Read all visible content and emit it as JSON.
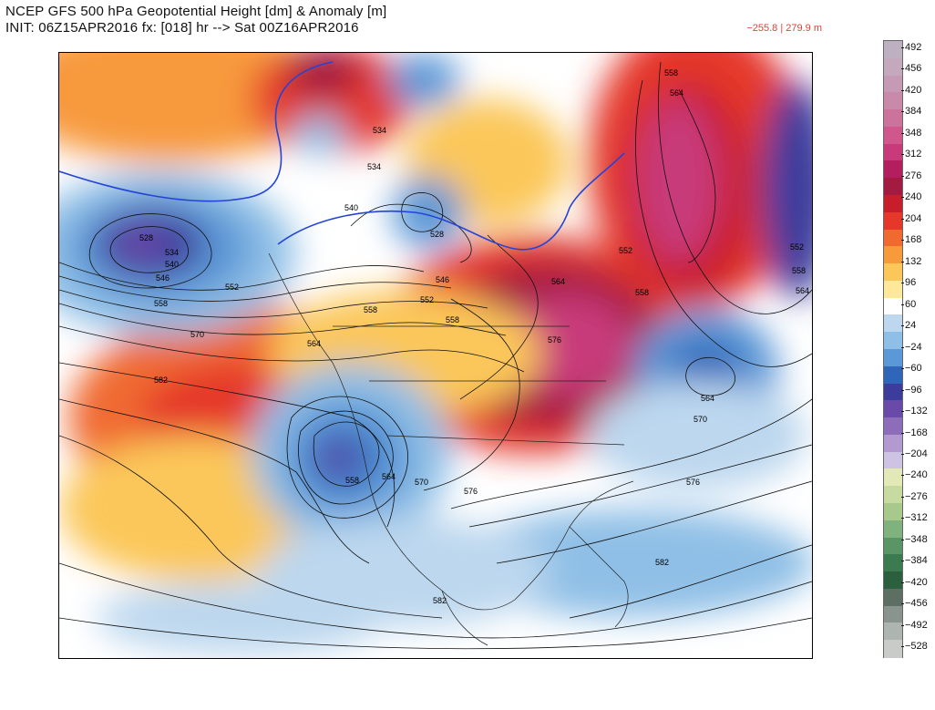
{
  "header": {
    "title_line1": "NCEP GFS 500 hPa Geopotential Height [dm] & Anomaly [m]",
    "title_line2": "INIT: 06Z15APR2016 fx: [018] hr --> Sat 00Z16APR2016",
    "min_max": "−255.8 | 279.9 m"
  },
  "colorbar": {
    "labels": [
      "492",
      "456",
      "420",
      "384",
      "348",
      "312",
      "276",
      "240",
      "204",
      "168",
      "132",
      "96",
      "60",
      "24",
      "−24",
      "−60",
      "−96",
      "−132",
      "−168",
      "−204",
      "−240",
      "−276",
      "−312",
      "−348",
      "−384",
      "−420",
      "−456",
      "−492",
      "−528"
    ],
    "colors": [
      "#bdb0c0",
      "#c4a8bc",
      "#c69ab4",
      "#c98aaa",
      "#cc739c",
      "#d0578c",
      "#c83a7a",
      "#b31f5e",
      "#a31b40",
      "#c81e2b",
      "#e5382b",
      "#f06a30",
      "#f79a3c",
      "#fbc75a",
      "#ffe89a",
      "#ffffff",
      "#bcd7ee",
      "#8fbfe6",
      "#5b98d7",
      "#2f66b9",
      "#3c3c9c",
      "#6a4aa8",
      "#8d6cba",
      "#b29ad0",
      "#cfc3e3",
      "#e2e9b6",
      "#c7dba0",
      "#a8c98c",
      "#7fb27c",
      "#5a9565",
      "#3c7a50",
      "#2c5f3e",
      "#5c6f62",
      "#8a948e",
      "#aeb4b0",
      "#c9cbc9"
    ]
  },
  "contour_labels": [
    "528",
    "534",
    "540",
    "546",
    "552",
    "558",
    "564",
    "570",
    "576",
    "582"
  ]
}
